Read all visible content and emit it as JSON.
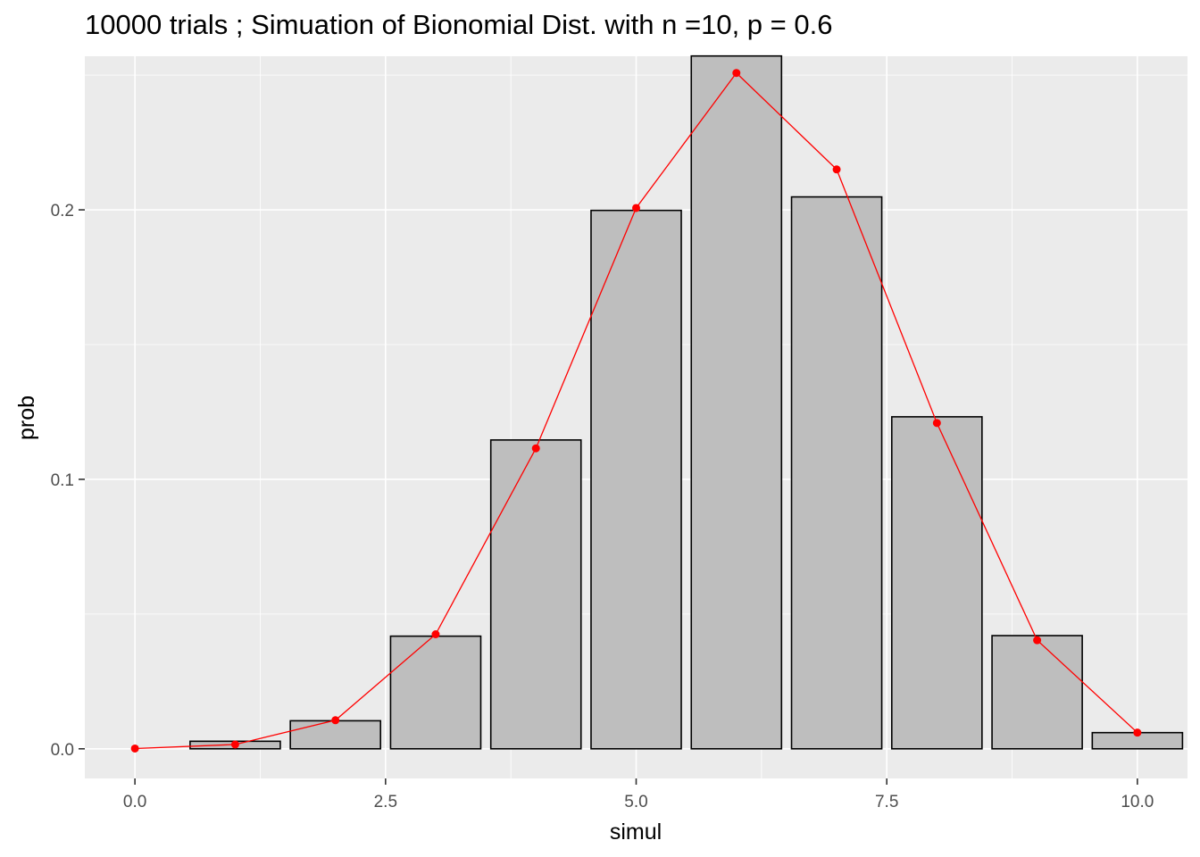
{
  "chart_data": {
    "type": "bar",
    "title": "10000 trials ; Simuation of Bionomial Dist. with n =10, p = 0.6",
    "xlabel": "simul",
    "ylabel": "prob",
    "xlim": [
      -0.5,
      10.5
    ],
    "ylim": [
      -0.011,
      0.257
    ],
    "x_ticks": [
      0.0,
      2.5,
      5.0,
      7.5,
      10.0
    ],
    "x_tick_labels": [
      "0.0",
      "2.5",
      "5.0",
      "7.5",
      "10.0"
    ],
    "y_ticks": [
      0.0,
      0.1,
      0.2
    ],
    "y_tick_labels": [
      "0.0",
      "0.1",
      "0.2"
    ],
    "grid": true,
    "bars": {
      "x": [
        1,
        2,
        3,
        4,
        5,
        6,
        7,
        8,
        9,
        10
      ],
      "values": [
        0.0028,
        0.0104,
        0.0418,
        0.1146,
        0.1998,
        0.2571,
        0.2048,
        0.1232,
        0.042,
        0.006
      ],
      "fill": "#bebebe",
      "stroke": "#000000"
    },
    "line_series": {
      "x": [
        0,
        1,
        2,
        3,
        4,
        5,
        6,
        7,
        8,
        9,
        10
      ],
      "values": [
        0.0001,
        0.0016,
        0.0106,
        0.0425,
        0.1115,
        0.2007,
        0.2508,
        0.215,
        0.1209,
        0.0403,
        0.006
      ],
      "color": "#ff0000"
    },
    "panel_background": "#ebebeb",
    "grid_color": "#ffffff"
  }
}
